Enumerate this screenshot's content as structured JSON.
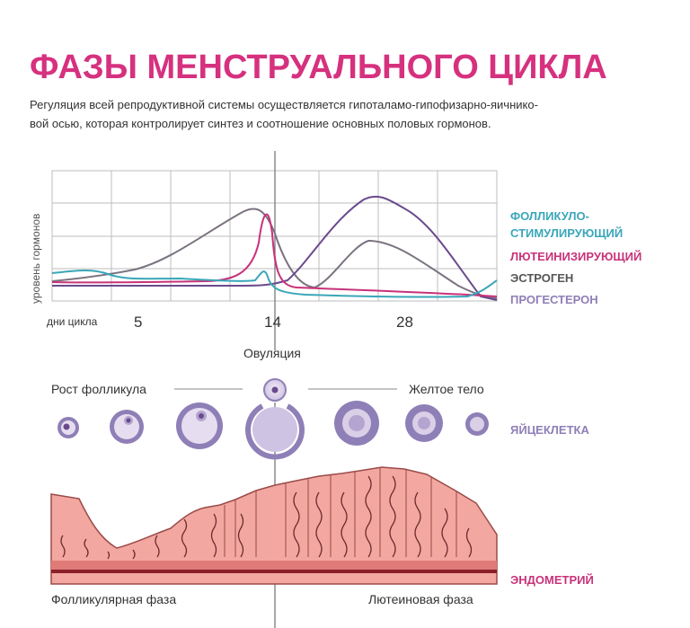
{
  "title": "ФАЗЫ МЕНСТРУАЛЬНОГО ЦИКЛА",
  "subtitle_lines": [
    "Регуляция всей репродуктивной системы осуществляется гипоталамо-гипофизарно-яичнико-",
    "вой осью, которая контролирует синтез и соотношение основных половых гормонов."
  ],
  "chart_data": {
    "type": "line",
    "ylabel": "уровень гормонов",
    "xlabel": "дни цикла",
    "x_ticks": [
      "5",
      "14",
      "28"
    ],
    "grid": true,
    "series": [
      {
        "name": "ФОЛЛИКУЛО-\nСТИМУЛИРУЮЩИЙ",
        "color": "#3aa6b9"
      },
      {
        "name": "ЛЮТЕИНИЗИРУЮЩИЙ",
        "color": "#c8327a"
      },
      {
        "name": "ЭСТРОГЕН",
        "color": "#7b7380"
      },
      {
        "name": "ПРОГЕСТЕРОН",
        "color": "#6a4a8c"
      }
    ]
  },
  "legend": {
    "fsh_line1": "ФОЛЛИКУЛО-",
    "fsh_line2": "СТИМУЛИРУЮЩИЙ",
    "lh": "ЛЮТЕИНИЗИРУЮЩИЙ",
    "estrogen": "ЭСТРОГЕН",
    "progesterone": "ПРОГЕСТЕРОН"
  },
  "ovulation_label": "Овуляция",
  "follicle_growth_label": "Рост фолликула",
  "corpus_luteum_label": "Желтое тело",
  "egg_label": "ЯЙЦЕКЛЕТКА",
  "endometrium_label": "ЭНДОМЕТРИЙ",
  "follicular_phase_label": "Фолликулярная фаза",
  "luteal_phase_label": "Лютеиновая фаза",
  "colors": {
    "title": "#d6317f",
    "cyan": "#3aa6b9",
    "magenta": "#c8327a",
    "gray": "#7b7380",
    "purple": "#6a4a8c",
    "lavender": "#8f7fb7",
    "endometrium": "#f3a7a1"
  }
}
